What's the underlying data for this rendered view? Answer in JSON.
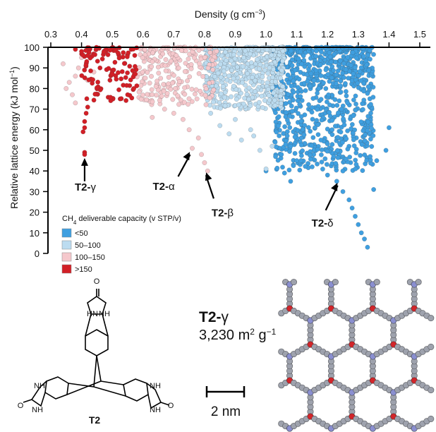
{
  "chart_data": {
    "type": "scatter",
    "xlabel_top": "Density (g cm",
    "xlabel_top_sup": "−3",
    "xlabel_top_end": ")",
    "ylabel": "Relative lattice energy (kJ mol",
    "ylabel_sup": "−1",
    "ylabel_end": ")",
    "xlim": [
      0.3,
      1.5
    ],
    "ylim": [
      0,
      100
    ],
    "x_ticks": [
      "0.3",
      "0.4",
      "0.5",
      "0.6",
      "0.7",
      "0.8",
      "0.9",
      "1.0",
      "1.1",
      "1.2",
      "1.3",
      "1.4",
      "1.5"
    ],
    "y_ticks": [
      "0",
      "10",
      "20",
      "30",
      "40",
      "50",
      "60",
      "70",
      "80",
      "90",
      "100"
    ],
    "legend": {
      "title": "CH",
      "title_sub": "4",
      "title_end": " deliverable capacity (v STP/v)",
      "placement": "bottom-left",
      "entries": [
        {
          "label": "<50",
          "color": "#3f9fe0"
        },
        {
          "label": "50–100",
          "color": "#bcdcf0"
        },
        {
          "label": "100–150",
          "color": "#f5c8cc"
        },
        {
          "label": ">150",
          "color": "#d21f26"
        }
      ]
    },
    "series": [
      {
        "name": "<50",
        "color": "#3f9fe0",
        "cloud": {
          "xmin": 1.02,
          "xmax": 1.35,
          "ymin": 40,
          "ymax": 100
        },
        "points": [
          [
            1.23,
            35
          ],
          [
            1.25,
            30
          ],
          [
            1.27,
            26
          ],
          [
            1.28,
            22
          ],
          [
            1.29,
            18
          ],
          [
            1.3,
            14
          ],
          [
            1.31,
            10
          ],
          [
            1.32,
            7
          ],
          [
            1.33,
            3
          ],
          [
            1.35,
            31
          ],
          [
            1.36,
            45
          ],
          [
            1.39,
            50
          ],
          [
            1.4,
            61
          ],
          [
            1.0,
            40
          ],
          [
            1.08,
            35
          ],
          [
            1.1,
            45
          ],
          [
            1.06,
            39
          ],
          [
            1.05,
            48
          ],
          [
            1.08,
            52
          ],
          [
            1.15,
            42
          ],
          [
            1.2,
            38
          ],
          [
            1.22,
            47
          ],
          [
            1.25,
            40
          ]
        ]
      },
      {
        "name": "50–100",
        "color": "#bcdcf0",
        "cloud": {
          "xmin": 0.8,
          "xmax": 1.06,
          "ymin": 70,
          "ymax": 100
        },
        "points": [
          [
            0.92,
            55
          ],
          [
            0.98,
            50
          ],
          [
            1.0,
            41
          ],
          [
            0.85,
            62
          ],
          [
            0.88,
            58
          ],
          [
            0.95,
            60
          ],
          [
            1.02,
            52
          ],
          [
            0.82,
            68
          ],
          [
            0.9,
            65
          ],
          [
            0.96,
            57
          ]
        ]
      },
      {
        "name": "100–150",
        "color": "#f5c8cc",
        "cloud": {
          "xmin": 0.58,
          "xmax": 0.84,
          "ymin": 72,
          "ymax": 100
        },
        "points": [
          [
            0.76,
            51
          ],
          [
            0.79,
            48
          ],
          [
            0.8,
            44
          ],
          [
            0.81,
            40
          ],
          [
            0.75,
            60
          ],
          [
            0.73,
            65
          ],
          [
            0.78,
            56
          ],
          [
            0.7,
            68
          ],
          [
            0.37,
            77
          ],
          [
            0.36,
            83
          ],
          [
            0.38,
            86
          ],
          [
            0.39,
            90
          ],
          [
            0.4,
            95
          ],
          [
            0.34,
            92
          ],
          [
            0.35,
            80
          ],
          [
            0.38,
            73
          ],
          [
            0.42,
            84
          ],
          [
            0.44,
            88
          ],
          [
            0.63,
            66
          ],
          [
            0.67,
            70
          ]
        ]
      },
      {
        "name": ">150",
        "color": "#d21f26",
        "cloud": {
          "xmin": 0.4,
          "xmax": 0.58,
          "ymin": 74,
          "ymax": 100
        },
        "points": [
          [
            0.41,
            49
          ],
          [
            0.41,
            48
          ],
          [
            0.405,
            59
          ],
          [
            0.41,
            61
          ],
          [
            0.41,
            64
          ],
          [
            0.415,
            68
          ],
          [
            0.42,
            71
          ],
          [
            0.4,
            98
          ],
          [
            0.42,
            96
          ],
          [
            0.38,
            99
          ],
          [
            0.46,
            90
          ],
          [
            0.5,
            87
          ],
          [
            0.55,
            77
          ],
          [
            0.57,
            80
          ]
        ]
      }
    ],
    "annotations": [
      {
        "bold": "T2-",
        "greek": "γ",
        "x": 0.41,
        "y": 48
      },
      {
        "bold": "T2-",
        "greek": "α",
        "x": 0.76,
        "y": 51
      },
      {
        "bold": "T2-",
        "greek": "β",
        "x": 0.8,
        "y": 41
      },
      {
        "bold": "T2-",
        "greek": "δ",
        "x": 1.24,
        "y": 36
      }
    ]
  },
  "bottom": {
    "molecule_label": "T2",
    "structure_title_bold": "T2-",
    "structure_title_greek": "γ",
    "surface_area": "3,230 m",
    "surface_area_sup": "2",
    "surface_area_unit": " g",
    "surface_area_unit_sup": "−1",
    "scale_bar_label": "2 nm",
    "atom_labels": [
      "H",
      "N",
      "O",
      "N",
      "H",
      "H",
      "N",
      "O",
      "N",
      "H",
      "N",
      "H",
      "O",
      "N",
      "H"
    ]
  },
  "colors": {
    "carbon": "#9ea2ad",
    "oxygen": "#d2252a",
    "nitrogen": "#8a8fd0",
    "hydrogen": "#ffffff"
  }
}
